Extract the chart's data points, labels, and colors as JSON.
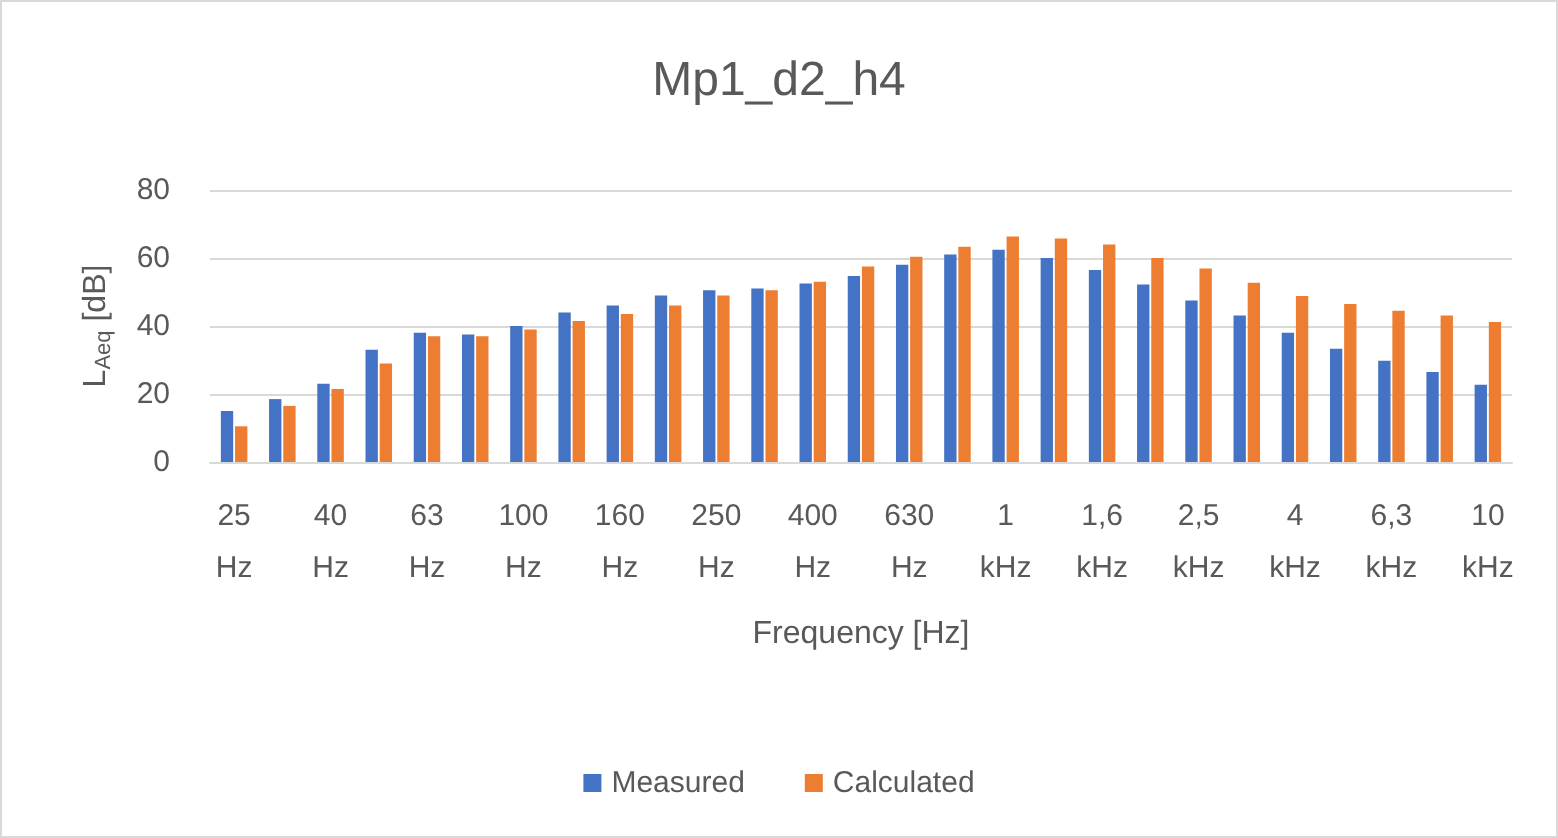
{
  "chart_data": {
    "type": "bar",
    "title": "Mp1_d2_h4",
    "xlabel": "Frequency [Hz]",
    "ylabel": "L$_{Aeq}$ [dB]",
    "categories": [
      "25 Hz",
      null,
      "40 Hz",
      null,
      "63 Hz",
      null,
      "100 Hz",
      null,
      "160 Hz",
      null,
      "250 Hz",
      null,
      "400 Hz",
      null,
      "630 Hz",
      null,
      "1 kHz",
      null,
      "1,6 kHz",
      null,
      "2,5 kHz",
      null,
      "4 kHz",
      null,
      "6,3 kHz",
      null,
      "10 kHz"
    ],
    "series": [
      {
        "name": "Measured",
        "color": "#4472c4",
        "values": [
          15,
          18.5,
          23,
          33,
          38,
          37.5,
          40,
          44,
          46,
          49,
          50.5,
          51,
          52.5,
          54.7,
          58,
          61,
          62.4,
          60,
          56.5,
          52.2,
          47.5,
          43.1,
          38,
          33.3,
          29.8,
          26.5,
          22.7
        ]
      },
      {
        "name": "Calculated",
        "color": "#ed7d31",
        "values": [
          10.5,
          16.5,
          21.5,
          29,
          37,
          37,
          39,
          41.5,
          43.5,
          46,
          49,
          50.5,
          53,
          57.5,
          60.4,
          63.3,
          66.3,
          65.7,
          64,
          60,
          56.9,
          52.7,
          48.8,
          46.5,
          44.5,
          43.1,
          41.2
        ]
      }
    ],
    "ylim": [
      0,
      80
    ],
    "yticks": [
      0,
      20,
      40,
      60,
      80
    ],
    "grid": "y",
    "legend": "bottom"
  }
}
